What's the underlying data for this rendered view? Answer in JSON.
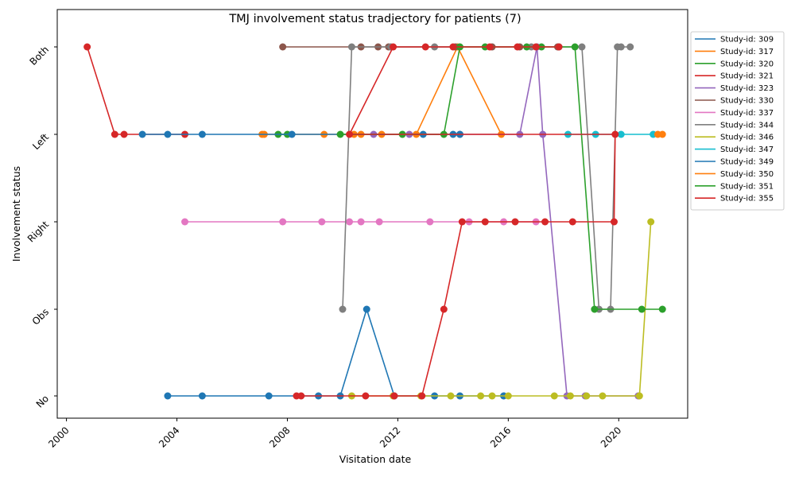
{
  "chart_data": {
    "type": "line",
    "title": "TMJ involvement status tradjectory for patients (7)",
    "xlabel": "Visitation date",
    "ylabel": "Involvement status",
    "categories_y": [
      "No",
      "Obs",
      "Right",
      "Left",
      "Both"
    ],
    "x_ticks": [
      "2000",
      "2004",
      "2008",
      "2012",
      "2016",
      "2020"
    ],
    "x_range": [
      "1999-09-01",
      "2022-07-01"
    ],
    "grid": false,
    "legend_position": "outside-right",
    "series": [
      {
        "name": "Study-id: 309",
        "color": "#1f77b4",
        "points": [
          [
            "2003-09-01",
            "No"
          ],
          [
            "2004-12-01",
            "No"
          ],
          [
            "2007-05-01",
            "No"
          ],
          [
            "2009-02-15",
            "No"
          ],
          [
            "2009-12-01",
            "No"
          ],
          [
            "2010-11-15",
            "Obs"
          ],
          [
            "2011-11-15",
            "No"
          ],
          [
            "2013-05-01",
            "No"
          ],
          [
            "2014-04-01",
            "No"
          ],
          [
            "2015-11-01",
            "No"
          ]
        ]
      },
      {
        "name": "Study-id: 317",
        "color": "#ff7f0e",
        "points": [
          [
            "2007-02-01",
            "Left"
          ],
          [
            "2007-03-01",
            "Left"
          ],
          [
            "2009-05-01",
            "Left"
          ],
          [
            "2010-06-01",
            "Left"
          ],
          [
            "2010-09-01",
            "Left"
          ],
          [
            "2011-06-01",
            "Left"
          ],
          [
            "2012-09-01",
            "Left"
          ],
          [
            "2014-03-01",
            "Both"
          ],
          [
            "2015-10-01",
            "Left"
          ]
        ]
      },
      {
        "name": "Study-id: 320",
        "color": "#2ca02c",
        "points": [
          [
            "2007-09-01",
            "Left"
          ],
          [
            "2008-01-01",
            "Left"
          ]
        ]
      },
      {
        "name": "Study-id: 321",
        "color": "#d62728",
        "points": [
          [
            "2000-10-01",
            "Both"
          ],
          [
            "2001-10-01",
            "Left"
          ],
          [
            "2002-02-01",
            "Left"
          ],
          [
            "2004-04-15",
            "Left"
          ]
        ]
      },
      {
        "name": "Study-id: 323",
        "color": "#9467bd",
        "points": [
          [
            "2011-02-15",
            "Left"
          ],
          [
            "2012-06-01",
            "Left"
          ],
          [
            "2014-04-01",
            "Left"
          ],
          [
            "2016-06-01",
            "Left"
          ],
          [
            "2017-01-15",
            "Both"
          ],
          [
            "2017-04-01",
            "Left"
          ],
          [
            "2018-02-15",
            "No"
          ],
          [
            "2018-10-15",
            "No"
          ],
          [
            "2020-09-15",
            "No"
          ]
        ]
      },
      {
        "name": "Study-id: 330",
        "color": "#8c564b",
        "points": [
          [
            "2007-11-01",
            "Both"
          ],
          [
            "2010-09-01",
            "Both"
          ],
          [
            "2011-04-15",
            "Both"
          ],
          [
            "2011-09-01",
            "Both"
          ],
          [
            "2014-02-01",
            "Both"
          ],
          [
            "2015-06-01",
            "Both"
          ],
          [
            "2016-06-01",
            "Both"
          ],
          [
            "2017-10-15",
            "Both"
          ]
        ]
      },
      {
        "name": "Study-id: 337",
        "color": "#e377c2",
        "points": [
          [
            "2004-04-15",
            "Right"
          ],
          [
            "2007-11-01",
            "Right"
          ],
          [
            "2009-04-01",
            "Right"
          ],
          [
            "2010-04-01",
            "Right"
          ],
          [
            "2010-09-01",
            "Right"
          ],
          [
            "2011-05-01",
            "Right"
          ],
          [
            "2013-03-01",
            "Right"
          ],
          [
            "2014-08-01",
            "Right"
          ],
          [
            "2015-11-01",
            "Right"
          ],
          [
            "2017-01-01",
            "Right"
          ]
        ]
      },
      {
        "name": "Study-id: 344",
        "color": "#7f7f7f",
        "points": [
          [
            "2010-01-01",
            "Obs"
          ],
          [
            "2010-05-01",
            "Both"
          ],
          [
            "2011-10-01",
            "Both"
          ],
          [
            "2013-05-01",
            "Both"
          ],
          [
            "2016-11-01",
            "Both"
          ],
          [
            "2017-11-01",
            "Both"
          ],
          [
            "2018-09-01",
            "Both"
          ],
          [
            "2019-04-15",
            "Obs"
          ],
          [
            "2019-09-15",
            "Obs"
          ],
          [
            "2019-12-15",
            "Both"
          ],
          [
            "2020-02-01",
            "Both"
          ],
          [
            "2020-06-01",
            "Both"
          ]
        ]
      },
      {
        "name": "Study-id: 346",
        "color": "#bcbd22",
        "points": [
          [
            "2010-05-01",
            "No"
          ],
          [
            "2011-11-01",
            "No"
          ],
          [
            "2012-11-01",
            "No"
          ],
          [
            "2013-12-01",
            "No"
          ],
          [
            "2015-01-01",
            "No"
          ],
          [
            "2015-06-01",
            "No"
          ],
          [
            "2016-01-01",
            "No"
          ],
          [
            "2017-09-01",
            "No"
          ],
          [
            "2018-04-01",
            "No"
          ],
          [
            "2018-11-01",
            "No"
          ],
          [
            "2019-06-01",
            "No"
          ],
          [
            "2020-10-01",
            "No"
          ],
          [
            "2021-03-01",
            "Right"
          ]
        ]
      },
      {
        "name": "Study-id: 347",
        "color": "#17becf",
        "points": [
          [
            "2018-03-01",
            "Left"
          ],
          [
            "2019-03-01",
            "Left"
          ],
          [
            "2020-02-01",
            "Left"
          ],
          [
            "2021-04-01",
            "Left"
          ]
        ]
      },
      {
        "name": "Study-id: 349",
        "color": "#1f77b4",
        "points": [
          [
            "2002-10-01",
            "Left"
          ],
          [
            "2003-09-01",
            "Left"
          ],
          [
            "2004-12-01",
            "Left"
          ],
          [
            "2008-03-01",
            "Left"
          ],
          [
            "2012-12-01",
            "Left"
          ],
          [
            "2014-01-01",
            "Left"
          ],
          [
            "2014-04-01",
            "Left"
          ]
        ]
      },
      {
        "name": "Study-id: 350",
        "color": "#ff7f0e",
        "points": [
          [
            "2021-06-01",
            "Left"
          ],
          [
            "2021-08-01",
            "Left"
          ]
        ]
      },
      {
        "name": "Study-id: 351",
        "color": "#2ca02c",
        "points": [
          [
            "2009-12-01",
            "Left"
          ],
          [
            "2012-03-01",
            "Left"
          ],
          [
            "2013-09-01",
            "Left"
          ],
          [
            "2014-04-01",
            "Both"
          ],
          [
            "2015-03-01",
            "Both"
          ],
          [
            "2016-09-01",
            "Both"
          ],
          [
            "2017-03-15",
            "Both"
          ],
          [
            "2018-06-01",
            "Both"
          ],
          [
            "2019-02-15",
            "Obs"
          ],
          [
            "2020-11-01",
            "Obs"
          ],
          [
            "2021-08-01",
            "Obs"
          ]
        ]
      },
      {
        "name": "Study-id: 355",
        "color": "#d62728",
        "points": [
          [
            "2008-05-01",
            "No"
          ],
          [
            "2008-07-01",
            "No"
          ],
          [
            "2010-11-01",
            "No"
          ],
          [
            "2011-11-15",
            "No"
          ],
          [
            "2012-11-15",
            "No"
          ],
          [
            "2013-09-01",
            "Obs"
          ],
          [
            "2014-05-01",
            "Right"
          ],
          [
            "2015-03-01",
            "Right"
          ],
          [
            "2016-04-01",
            "Right"
          ],
          [
            "2017-05-01",
            "Right"
          ],
          [
            "2018-05-01",
            "Right"
          ],
          [
            "2019-11-01",
            "Right"
          ],
          [
            "2019-11-15",
            "Left"
          ],
          [
            "2010-04-01",
            "Left"
          ],
          [
            "2011-11-01",
            "Both"
          ],
          [
            "2013-01-01",
            "Both"
          ],
          [
            "2014-01-01",
            "Both"
          ],
          [
            "2015-05-01",
            "Both"
          ],
          [
            "2016-05-01",
            "Both"
          ],
          [
            "2017-01-01",
            "Both"
          ],
          [
            "2017-11-01",
            "Both"
          ]
        ]
      }
    ]
  }
}
